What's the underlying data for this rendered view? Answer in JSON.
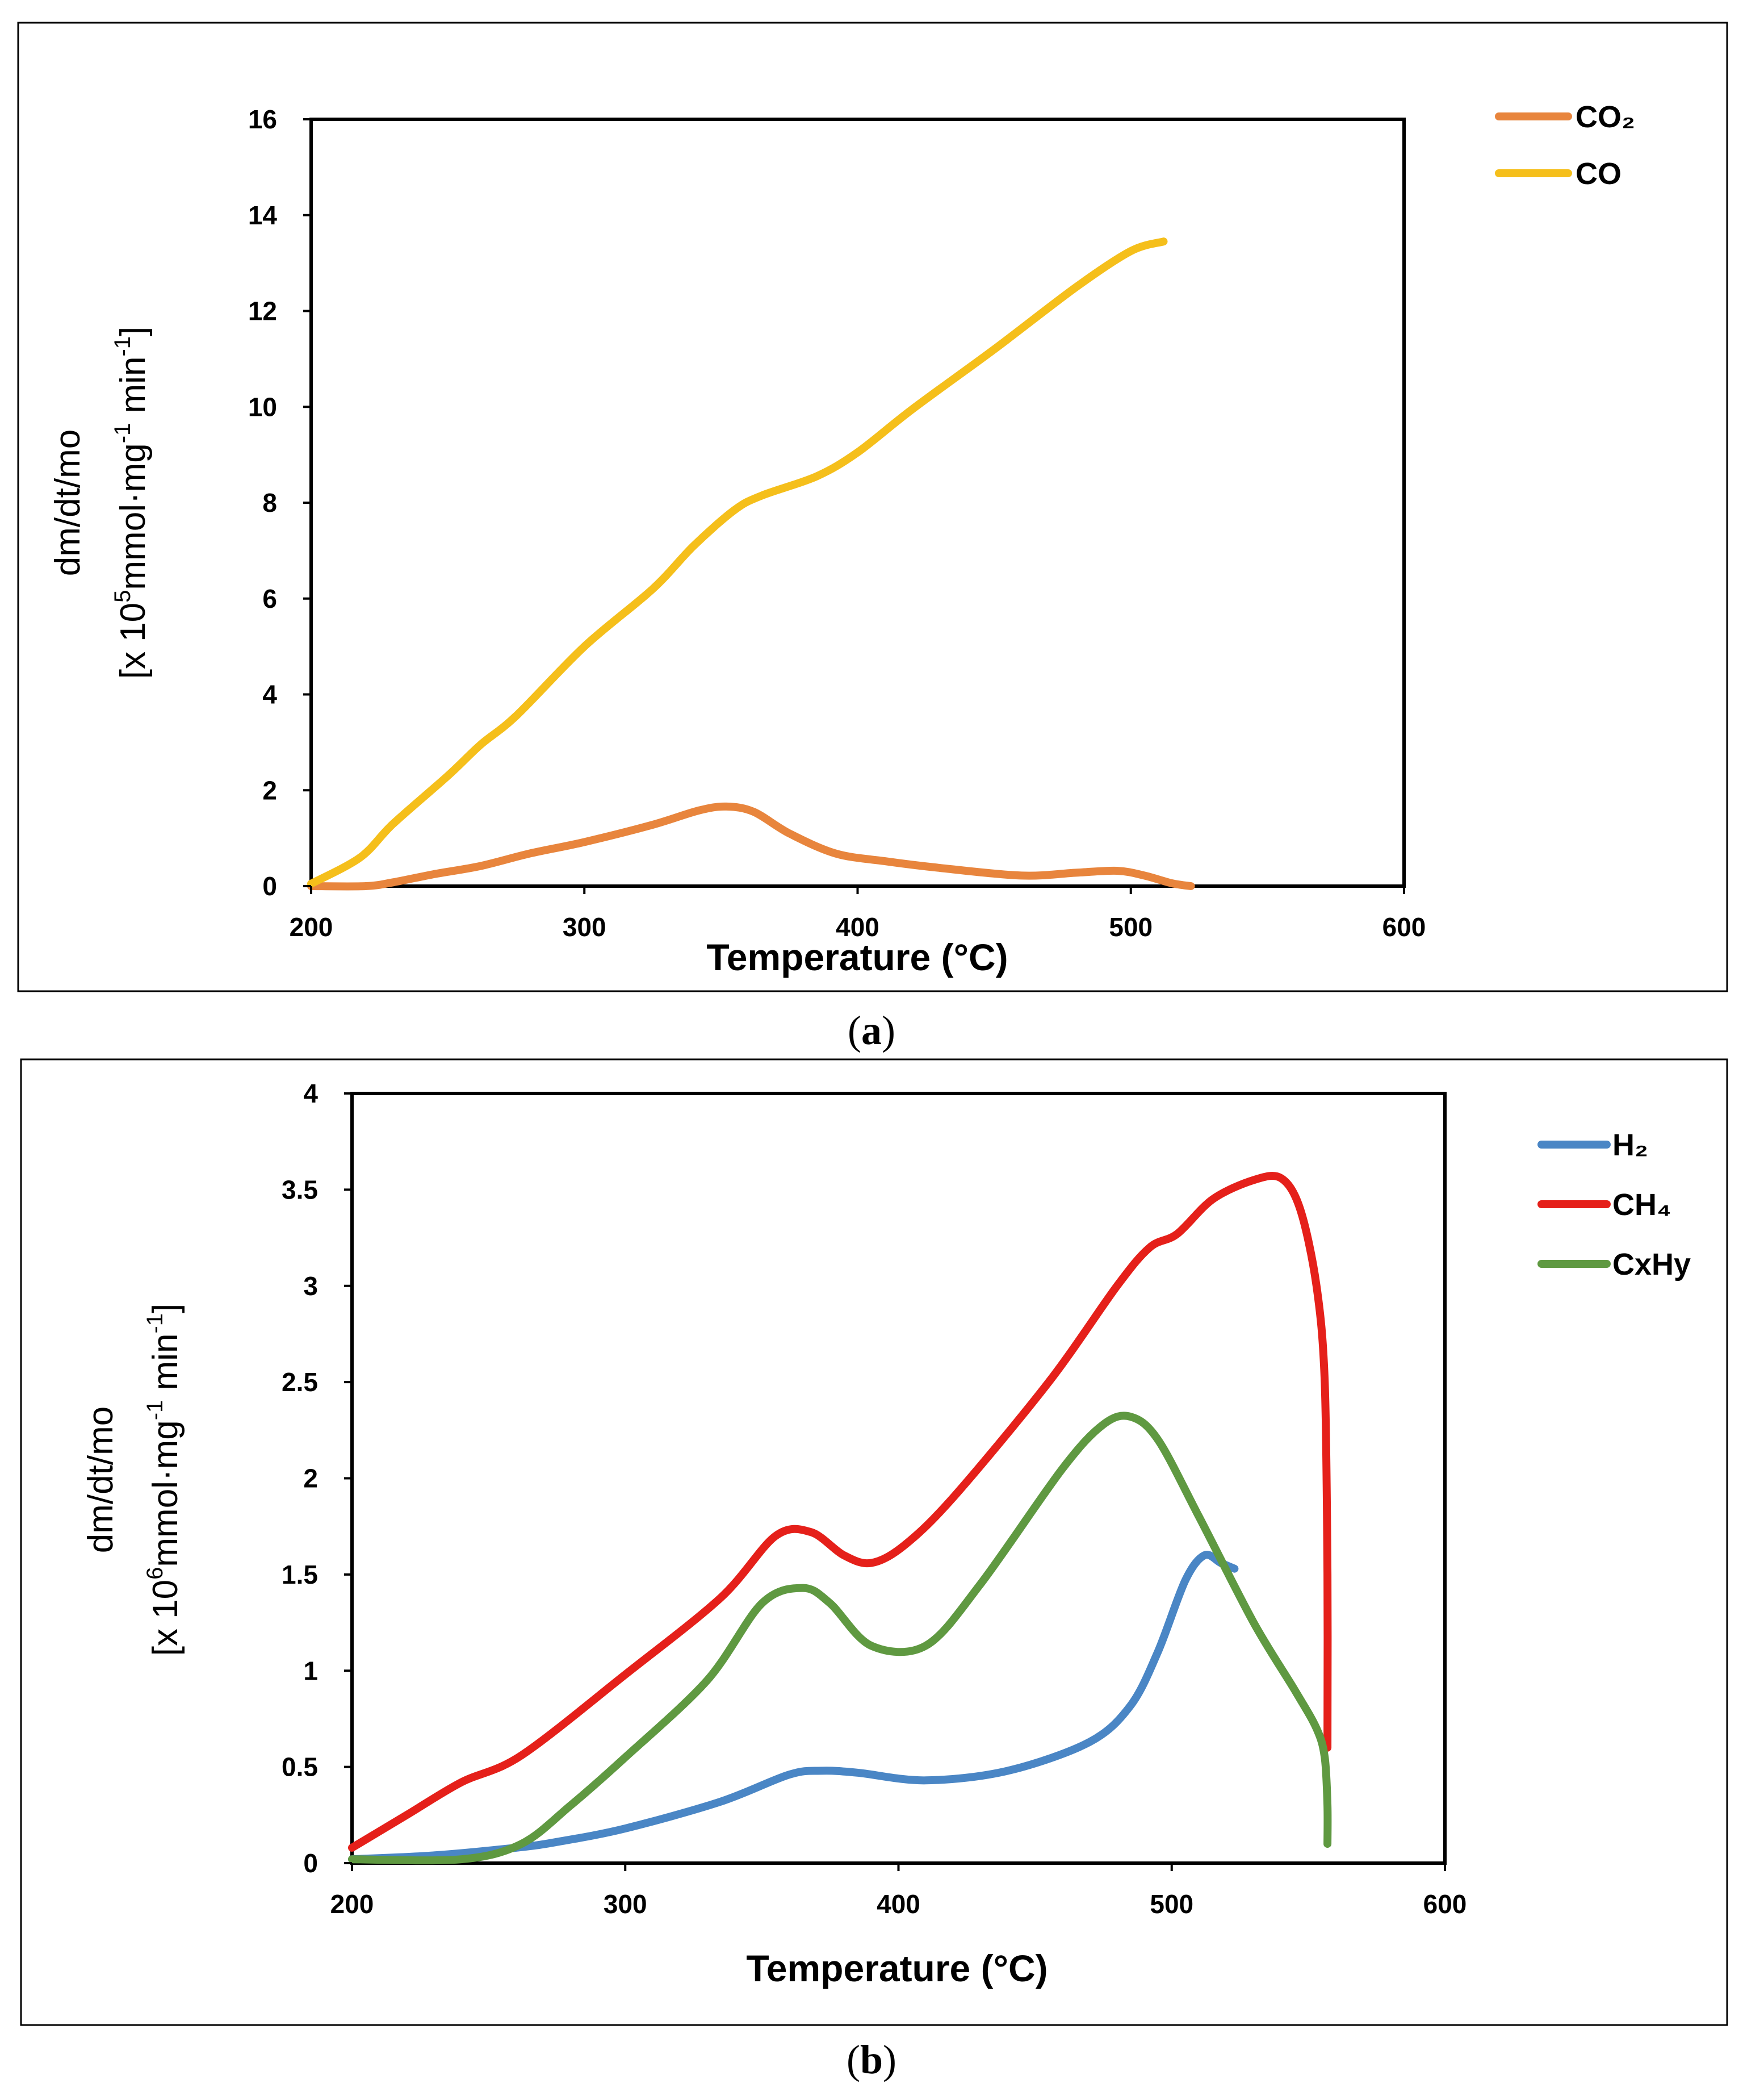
{
  "chart_data": [
    {
      "type": "line",
      "panel_label": "a",
      "xlabel_text": "Temperature (",
      "xlabel_unit": "°C",
      "xlabel_close": ")",
      "ylabel_line1": "dm/dt/mo",
      "ylabel_prefix": "[x 10",
      "ylabel_exp": "5",
      "ylabel_mid": "mmol·mg",
      "ylabel_exp2": "-1",
      "ylabel_suffix": " min",
      "ylabel_exp3": "-1",
      "ylabel_close": "]",
      "xlim": [
        200,
        600
      ],
      "ylim": [
        0,
        16
      ],
      "xticks": [
        200,
        300,
        400,
        500,
        600
      ],
      "yticks": [
        0,
        2,
        4,
        6,
        8,
        10,
        12,
        14,
        16
      ],
      "legend_position": "top-right",
      "series": [
        {
          "name": "CO₂",
          "color": "#E8853D",
          "x": [
            200,
            220,
            230,
            245,
            262,
            280,
            300,
            325,
            342,
            352,
            362,
            375,
            392,
            410,
            430,
            460,
            480,
            495,
            505,
            515,
            522
          ],
          "y": [
            0,
            0,
            0.08,
            0.25,
            0.42,
            0.68,
            0.92,
            1.28,
            1.58,
            1.66,
            1.55,
            1.1,
            0.68,
            0.52,
            0.38,
            0.22,
            0.28,
            0.32,
            0.22,
            0.06,
            0
          ]
        },
        {
          "name": "CO",
          "color": "#F5BF1B",
          "x": [
            200,
            218,
            230,
            250,
            262,
            275,
            300,
            325,
            340,
            355,
            365,
            385,
            400,
            420,
            450,
            480,
            500,
            512
          ],
          "y": [
            0.05,
            0.6,
            1.3,
            2.3,
            2.95,
            3.55,
            5,
            6.2,
            7.1,
            7.85,
            8.15,
            8.55,
            9.05,
            9.95,
            11.2,
            12.5,
            13.25,
            13.45
          ]
        }
      ]
    },
    {
      "type": "line",
      "panel_label": "b",
      "xlabel_text": "Temperature (",
      "xlabel_unit": "°C",
      "xlabel_close": ")",
      "ylabel_line1": "dm/dt/mo",
      "ylabel_prefix": "[x 10",
      "ylabel_exp": "6",
      "ylabel_mid": "mmol·mg",
      "ylabel_exp2": "-1",
      "ylabel_suffix": " min",
      "ylabel_exp3": "-1",
      "ylabel_close": "]",
      "xlim": [
        200,
        600
      ],
      "ylim": [
        0,
        4
      ],
      "xticks": [
        200,
        300,
        400,
        500,
        600
      ],
      "yticks": [
        0,
        0.5,
        1,
        1.5,
        2,
        2.5,
        3,
        3.5,
        4
      ],
      "legend_position": "top-right",
      "series": [
        {
          "name": "H₂",
          "color": "#4A86C5",
          "x": [
            200,
            230,
            260,
            275,
            300,
            335,
            360,
            372,
            385,
            410,
            440,
            470,
            485,
            495,
            505,
            512,
            518,
            523
          ],
          "y": [
            0.02,
            0.04,
            0.08,
            0.11,
            0.18,
            0.32,
            0.46,
            0.48,
            0.47,
            0.43,
            0.48,
            0.63,
            0.82,
            1.1,
            1.47,
            1.6,
            1.56,
            1.53
          ]
        },
        {
          "name": "CH₄",
          "color": "#E5201A",
          "x": [
            200,
            220,
            240,
            262,
            300,
            335,
            355,
            368,
            380,
            390,
            402,
            420,
            455,
            480,
            492,
            502,
            515,
            530,
            540,
            547,
            553,
            556,
            557,
            557
          ],
          "y": [
            0.08,
            0.25,
            0.42,
            0.56,
            0.98,
            1.38,
            1.7,
            1.72,
            1.6,
            1.56,
            1.65,
            1.9,
            2.5,
            3.0,
            3.2,
            3.27,
            3.45,
            3.55,
            3.56,
            3.4,
            3.0,
            2.5,
            1.5,
            0.6
          ]
        },
        {
          "name": "CxHy",
          "color": "#5F9941",
          "x": [
            200,
            240,
            262,
            280,
            300,
            330,
            350,
            365,
            375,
            390,
            410,
            430,
            460,
            475,
            485,
            495,
            510,
            530,
            545,
            553,
            556,
            557,
            557
          ],
          "y": [
            0.02,
            0.02,
            0.1,
            0.3,
            0.55,
            0.95,
            1.35,
            1.43,
            1.35,
            1.13,
            1.13,
            1.45,
            2.05,
            2.28,
            2.32,
            2.2,
            1.8,
            1.25,
            0.9,
            0.7,
            0.55,
            0.3,
            0.1
          ]
        }
      ]
    }
  ]
}
